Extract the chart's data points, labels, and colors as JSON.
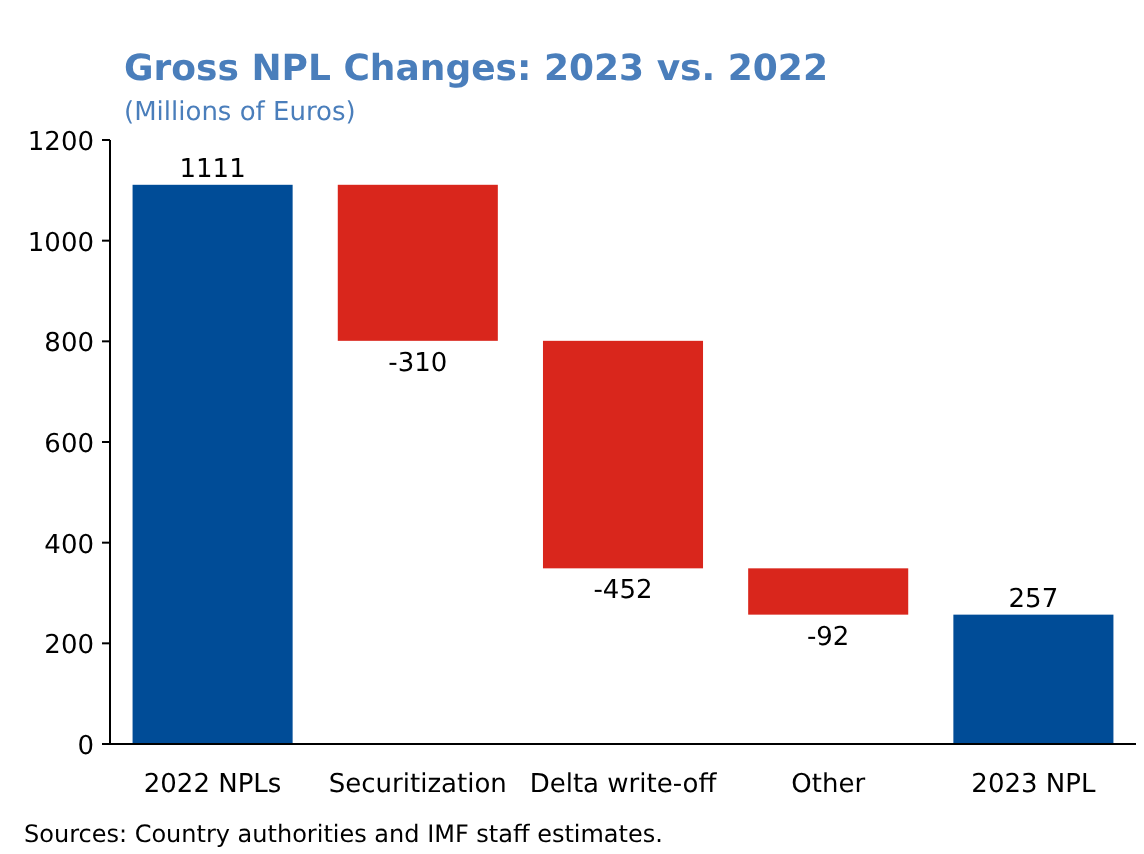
{
  "chart_data": {
    "type": "bar",
    "title": "Gross NPL Changes: 2023 vs. 2022",
    "subtitle": "(Millions of Euros)",
    "categories": [
      "2022 NPLs",
      "Securitization",
      "Delta write-off",
      "Other",
      "2023 NPL"
    ],
    "values": [
      1111,
      -310,
      -452,
      -92,
      257
    ],
    "base": [
      0,
      1111,
      801,
      349,
      0
    ],
    "colors": [
      "#004c97",
      "#d9261c",
      "#d9261c",
      "#d9261c",
      "#004c97"
    ],
    "ylim": [
      0,
      1200
    ],
    "yticks": [
      0,
      200,
      400,
      600,
      800,
      1000,
      1200
    ],
    "data_labels": true,
    "grid": false,
    "annotations": [
      "Sources: Country authorities and IMF staff estimates."
    ]
  }
}
